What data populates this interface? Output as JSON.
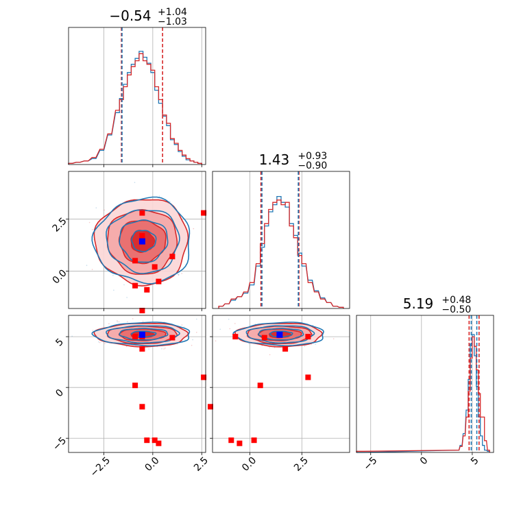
{
  "chart_data": {
    "type": "corner",
    "colors": {
      "red": "#d62728",
      "blue": "#1f77b4",
      "fill_light": "#f4a6a6",
      "fill_mid": "#e86a6a",
      "fill_dark": "#d62728",
      "marker_blue": "#0000ff",
      "marker_red": "#ff0000",
      "grid": "#b0b0b0"
    },
    "grid": true,
    "parameters": [
      {
        "index": 0,
        "median": -0.54,
        "plus": 1.04,
        "minus": 1.03,
        "title_main": "−0.54",
        "title_sup": "+1.04",
        "title_sub": "−1.03",
        "range": [
          -4.3,
          2.7
        ],
        "ticks": [
          -2.5,
          0.0,
          2.5
        ],
        "tick_labels": [
          "−2.5",
          "0.0",
          "2.5"
        ],
        "quantiles_red": [
          -1.6,
          0.5
        ],
        "quantiles_blue": [
          -1.57
        ]
      },
      {
        "index": 1,
        "median": 1.43,
        "plus": 0.93,
        "minus": 0.9,
        "title_main": "1.43",
        "title_sup": "+0.93",
        "title_sub": "−0.90",
        "range": [
          -1.8,
          4.8
        ],
        "ticks": [
          0.0,
          2.5
        ],
        "tick_labels": [
          "0.0",
          "2.5"
        ],
        "quantiles_red": [
          0.53,
          2.36
        ],
        "quantiles_blue": [
          0.58,
          2.33
        ]
      },
      {
        "index": 2,
        "median": 5.19,
        "plus": 0.48,
        "minus": 0.5,
        "title_main": "5.19",
        "title_sup": "+0.48",
        "title_sub": "−0.50",
        "range": [
          -6.4,
          7.1
        ],
        "ticks": [
          -5,
          0,
          5
        ],
        "tick_labels": [
          "−5",
          "0",
          "5"
        ],
        "quantiles_red": [
          4.69,
          5.67
        ],
        "quantiles_blue": [
          4.9,
          5.45
        ]
      }
    ],
    "blue_marker": [
      -0.54,
      1.43,
      5.19
    ],
    "red_markers": [
      [
        -0.54,
        2.8,
        5.0
      ],
      [
        -0.54,
        1.7,
        3.8
      ],
      [
        -0.9,
        0.5,
        0.2
      ],
      [
        -0.54,
        -1.9,
        -1.9
      ],
      [
        -0.3,
        -0.9,
        -5.2
      ],
      [
        0.1,
        0.2,
        -5.2
      ],
      [
        0.3,
        -0.5,
        -5.5
      ],
      [
        1.0,
        0.7,
        4.9
      ],
      [
        2.6,
        2.8,
        1.0
      ],
      [
        -0.9,
        -0.7,
        5.0
      ]
    ],
    "contour_levels_1d_sigma": [
      0.5,
      1.0,
      1.5,
      2.0
    ],
    "hist_param0_x": [
      -4.2,
      -3.8,
      -3.4,
      -3.0,
      -2.6,
      -2.2,
      -1.8,
      -1.6,
      -1.4,
      -1.2,
      -1.0,
      -0.8,
      -0.6,
      -0.4,
      -0.2,
      0.0,
      0.2,
      0.4,
      0.6,
      0.8,
      1.0,
      1.2,
      1.4,
      1.6,
      1.8,
      2.0,
      2.2,
      2.4
    ],
    "hist_param0_red": [
      0.01,
      0.02,
      0.03,
      0.06,
      0.13,
      0.26,
      0.46,
      0.55,
      0.66,
      0.76,
      0.83,
      0.88,
      0.94,
      0.88,
      0.85,
      0.8,
      0.66,
      0.55,
      0.42,
      0.35,
      0.22,
      0.18,
      0.12,
      0.08,
      0.05,
      0.03,
      0.02,
      0.01
    ],
    "hist_param0_blue": [
      0.01,
      0.02,
      0.03,
      0.05,
      0.12,
      0.25,
      0.44,
      0.56,
      0.68,
      0.78,
      0.85,
      0.9,
      0.96,
      0.91,
      0.86,
      0.78,
      0.63,
      0.52,
      0.41,
      0.33,
      0.21,
      0.17,
      0.11,
      0.07,
      0.04,
      0.03,
      0.02,
      0.01
    ],
    "hist_param1_x": [
      -1.4,
      -1.1,
      -0.8,
      -0.5,
      -0.2,
      0.1,
      0.4,
      0.6,
      0.8,
      1.0,
      1.2,
      1.4,
      1.6,
      1.8,
      2.0,
      2.2,
      2.4,
      2.6,
      2.9,
      3.2,
      3.5,
      3.8,
      4.1,
      4.4
    ],
    "hist_param1_red": [
      0.02,
      0.04,
      0.08,
      0.1,
      0.14,
      0.22,
      0.38,
      0.55,
      0.72,
      0.84,
      0.9,
      0.92,
      0.88,
      0.9,
      0.7,
      0.6,
      0.45,
      0.38,
      0.22,
      0.14,
      0.08,
      0.05,
      0.02,
      0.01
    ],
    "hist_param1_blue": [
      0.02,
      0.04,
      0.07,
      0.1,
      0.13,
      0.2,
      0.36,
      0.52,
      0.7,
      0.82,
      0.88,
      0.95,
      0.9,
      0.86,
      0.72,
      0.62,
      0.47,
      0.36,
      0.24,
      0.15,
      0.09,
      0.05,
      0.02,
      0.01
    ],
    "hist_param2_x": [
      -6.3,
      -5.8,
      3.6,
      3.9,
      4.2,
      4.5,
      4.7,
      4.9,
      5.1,
      5.3,
      5.5,
      5.7,
      5.9,
      6.1,
      6.3,
      6.6
    ],
    "hist_param2_red": [
      0.01,
      0.01,
      0.02,
      0.05,
      0.14,
      0.3,
      0.52,
      0.8,
      0.98,
      0.9,
      0.7,
      0.5,
      0.3,
      0.3,
      0.1,
      0.02
    ],
    "hist_param2_blue": [
      0.0,
      0.0,
      0.02,
      0.06,
      0.16,
      0.36,
      0.62,
      0.92,
      1.0,
      0.82,
      0.56,
      0.3,
      0.14,
      0.06,
      0.02,
      0.01
    ]
  }
}
